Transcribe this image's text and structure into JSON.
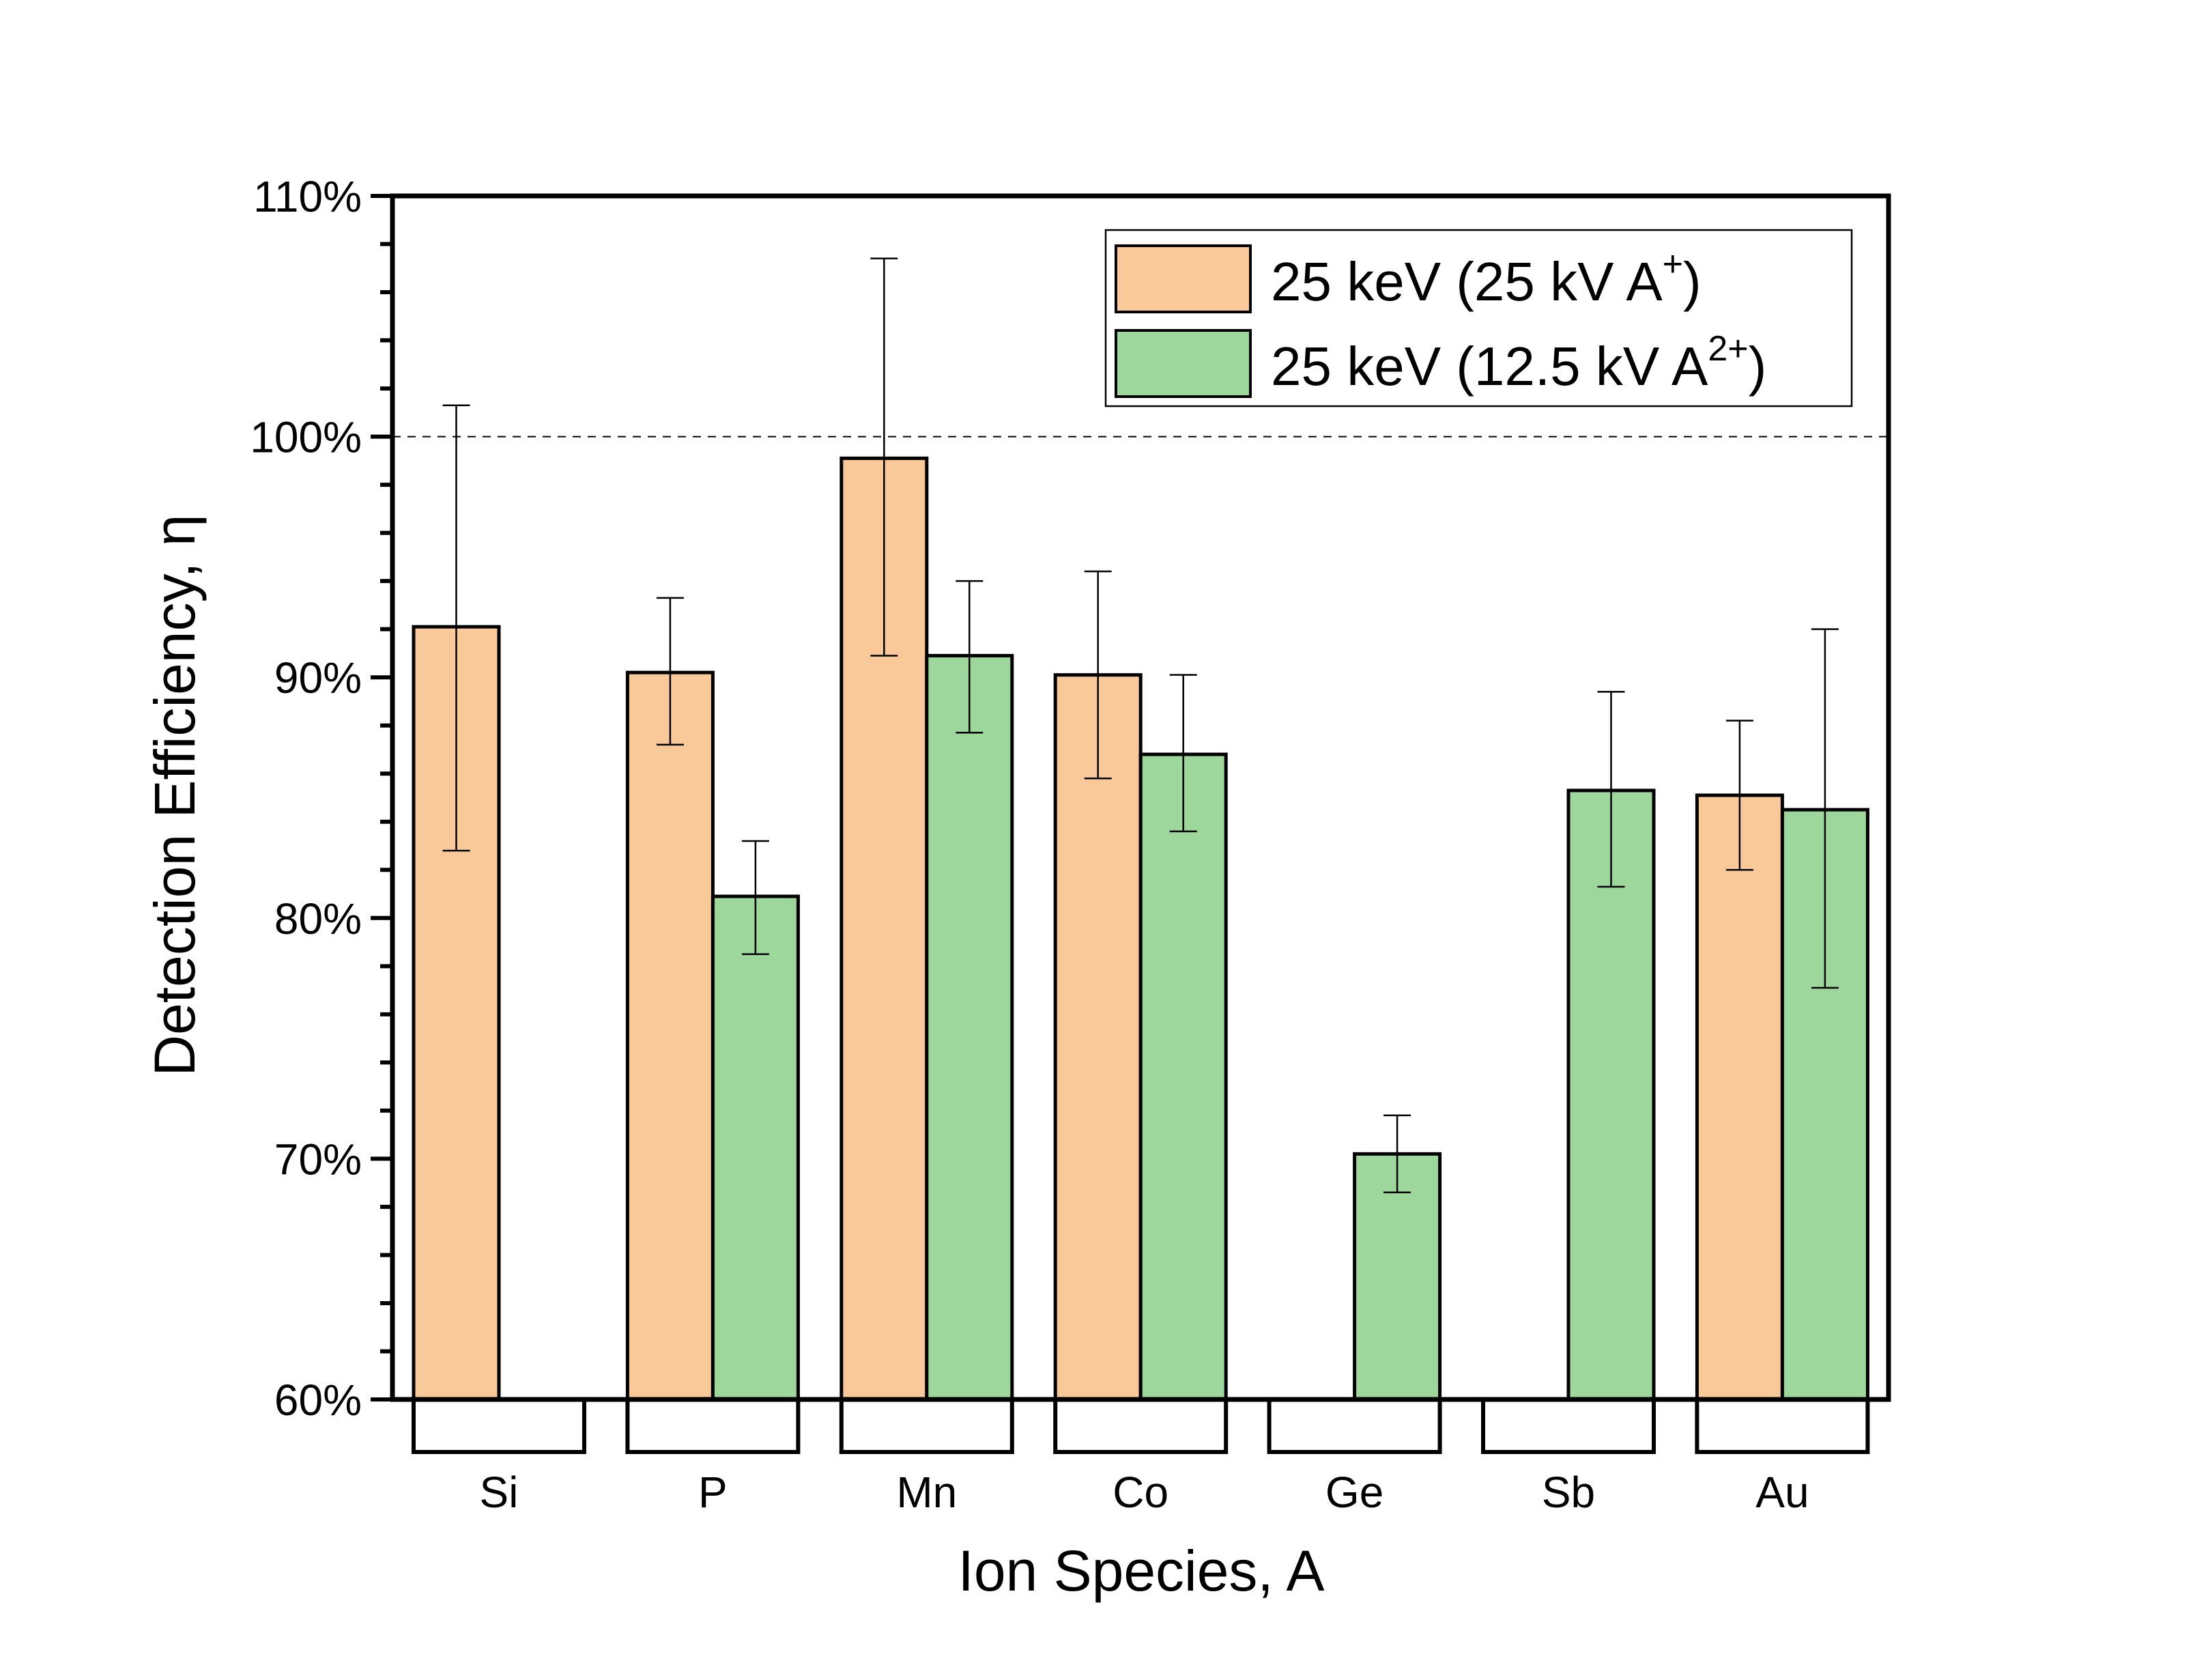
{
  "chart_data": {
    "type": "bar",
    "title": "",
    "xlabel": "Ion Species, A",
    "ylabel": "Detection Efficiency, η",
    "ylim": [
      60,
      110
    ],
    "yticks": [
      60,
      70,
      80,
      90,
      100,
      110
    ],
    "ytick_labels": [
      "60%",
      "70%",
      "80%",
      "90%",
      "100%",
      "110%"
    ],
    "y_minor_step": 2,
    "reference_line": {
      "value": 100,
      "style": "dashed"
    },
    "grid": false,
    "legend_position": "top-right",
    "categories": [
      "Si",
      "P",
      "Mn",
      "Co",
      "Ge",
      "Sb",
      "Au"
    ],
    "series": [
      {
        "name": "25 keV (25 kV A+)",
        "label_main": "25 keV (25 kV A",
        "label_sup": "+",
        "label_end": ")",
        "color": "#FAC999",
        "values": [
          92.1,
          90.2,
          99.1,
          90.1,
          null,
          null,
          85.1
        ],
        "err_low": [
          82.8,
          87.2,
          90.9,
          85.8,
          null,
          null,
          82.0
        ],
        "err_high": [
          101.3,
          93.3,
          107.4,
          94.4,
          null,
          null,
          88.2
        ]
      },
      {
        "name": "25 keV (12.5 kV A2+)",
        "label_main": "25 keV (12.5 kV A",
        "label_sup": "2+",
        "label_end": ")",
        "color": "#9ED79C",
        "values": [
          null,
          80.9,
          90.9,
          86.8,
          70.2,
          85.3,
          84.5
        ],
        "err_low": [
          null,
          78.5,
          87.7,
          83.6,
          68.6,
          81.3,
          77.1
        ],
        "err_high": [
          null,
          83.2,
          94.0,
          90.1,
          71.8,
          89.4,
          92.0
        ]
      }
    ]
  }
}
